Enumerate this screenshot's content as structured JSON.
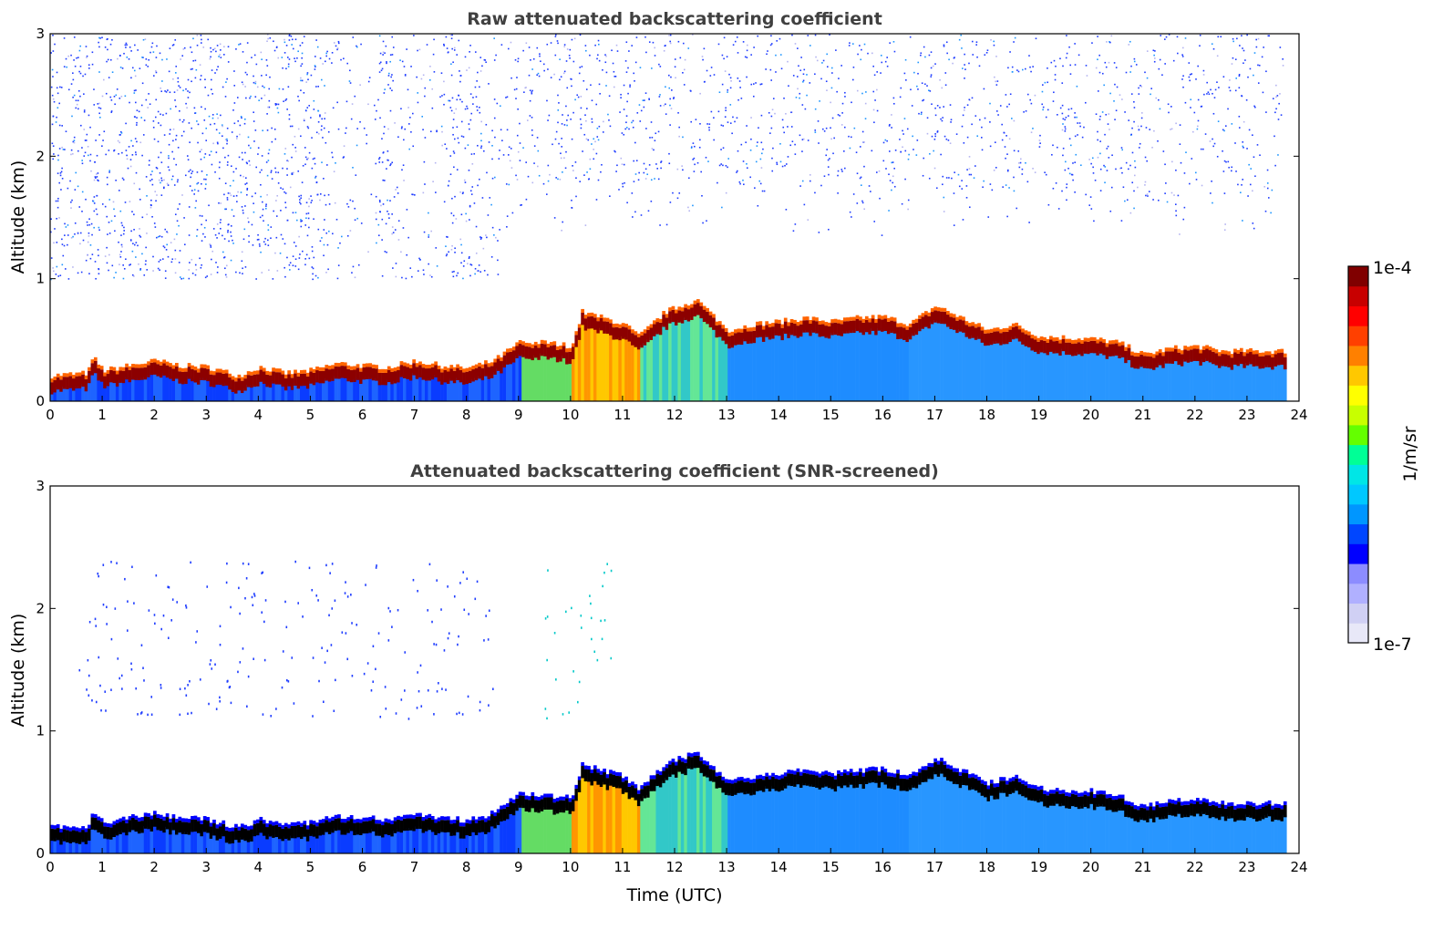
{
  "chart_data": [
    {
      "type": "heatmap",
      "title": "Raw attenuated backscattering coefficient",
      "xlabel": "",
      "ylabel": "Altitude (km)",
      "xlim": [
        0,
        24
      ],
      "ylim": [
        0,
        3
      ],
      "xticks": [
        "0",
        "1",
        "2",
        "3",
        "4",
        "5",
        "6",
        "7",
        "8",
        "9",
        "10",
        "11",
        "12",
        "13",
        "14",
        "15",
        "16",
        "17",
        "18",
        "19",
        "20",
        "21",
        "22",
        "23",
        "24"
      ],
      "yticks": [
        "0",
        "1",
        "2",
        "3"
      ],
      "data_extent_x": [
        0,
        23.7
      ],
      "layer_top_km": [
        [
          0,
          0.18
        ],
        [
          0.7,
          0.2
        ],
        [
          0.8,
          0.33
        ],
        [
          1,
          0.22
        ],
        [
          1.6,
          0.27
        ],
        [
          2,
          0.3
        ],
        [
          2.5,
          0.26
        ],
        [
          3,
          0.25
        ],
        [
          3.6,
          0.18
        ],
        [
          4,
          0.25
        ],
        [
          4.5,
          0.2
        ],
        [
          5,
          0.22
        ],
        [
          5.5,
          0.28
        ],
        [
          6,
          0.26
        ],
        [
          6.5,
          0.25
        ],
        [
          7,
          0.3
        ],
        [
          7.5,
          0.26
        ],
        [
          8,
          0.24
        ],
        [
          8.5,
          0.3
        ],
        [
          9,
          0.45
        ],
        [
          9.5,
          0.45
        ],
        [
          10,
          0.42
        ],
        [
          10.2,
          0.7
        ],
        [
          10.6,
          0.65
        ],
        [
          11,
          0.6
        ],
        [
          11.3,
          0.5
        ],
        [
          11.8,
          0.7
        ],
        [
          12.4,
          0.8
        ],
        [
          13,
          0.55
        ],
        [
          13.5,
          0.6
        ],
        [
          14,
          0.62
        ],
        [
          14.5,
          0.65
        ],
        [
          15,
          0.62
        ],
        [
          15.5,
          0.65
        ],
        [
          16,
          0.66
        ],
        [
          16.5,
          0.6
        ],
        [
          17,
          0.75
        ],
        [
          17.5,
          0.65
        ],
        [
          18,
          0.55
        ],
        [
          18.5,
          0.6
        ],
        [
          19,
          0.5
        ],
        [
          20,
          0.48
        ],
        [
          20.5,
          0.45
        ],
        [
          21,
          0.35
        ],
        [
          21.5,
          0.4
        ],
        [
          22,
          0.42
        ],
        [
          22.5,
          0.38
        ],
        [
          23.7,
          0.38
        ]
      ],
      "noise_band_km": [
        1.0,
        3.0
      ],
      "colorscale": [
        "#e8e8f8",
        "#0000ff",
        "#0096ff",
        "#00e6e6",
        "#00ff00",
        "#ffff00",
        "#ff8000",
        "#ff0000",
        "#800000"
      ]
    },
    {
      "type": "heatmap",
      "title": "Attenuated backscattering coefficient (SNR-screened)",
      "xlabel": "Time (UTC)",
      "ylabel": "Altitude (km)",
      "xlim": [
        0,
        24
      ],
      "ylim": [
        0,
        3
      ],
      "xticks": [
        "0",
        "1",
        "2",
        "3",
        "4",
        "5",
        "6",
        "7",
        "8",
        "9",
        "10",
        "11",
        "12",
        "13",
        "14",
        "15",
        "16",
        "17",
        "18",
        "19",
        "20",
        "21",
        "22",
        "23",
        "24"
      ],
      "yticks": [
        "0",
        "1",
        "2",
        "3"
      ],
      "data_extent_x": [
        0,
        23.7
      ],
      "screened_layer_color": "#000000"
    }
  ],
  "colorbar": {
    "label": "1/m/sr",
    "max_label": "1e-4",
    "min_label": "1e-7",
    "scale": "log",
    "colors": [
      "#e8e8f8",
      "#d0d0f4",
      "#b0b0ff",
      "#8c8cff",
      "#0000ff",
      "#0046ff",
      "#0096ff",
      "#00c8ff",
      "#00e6e6",
      "#00ff96",
      "#64ff00",
      "#c8ff00",
      "#ffff00",
      "#ffc800",
      "#ff8000",
      "#ff4000",
      "#ff0000",
      "#c80000",
      "#800000"
    ]
  }
}
